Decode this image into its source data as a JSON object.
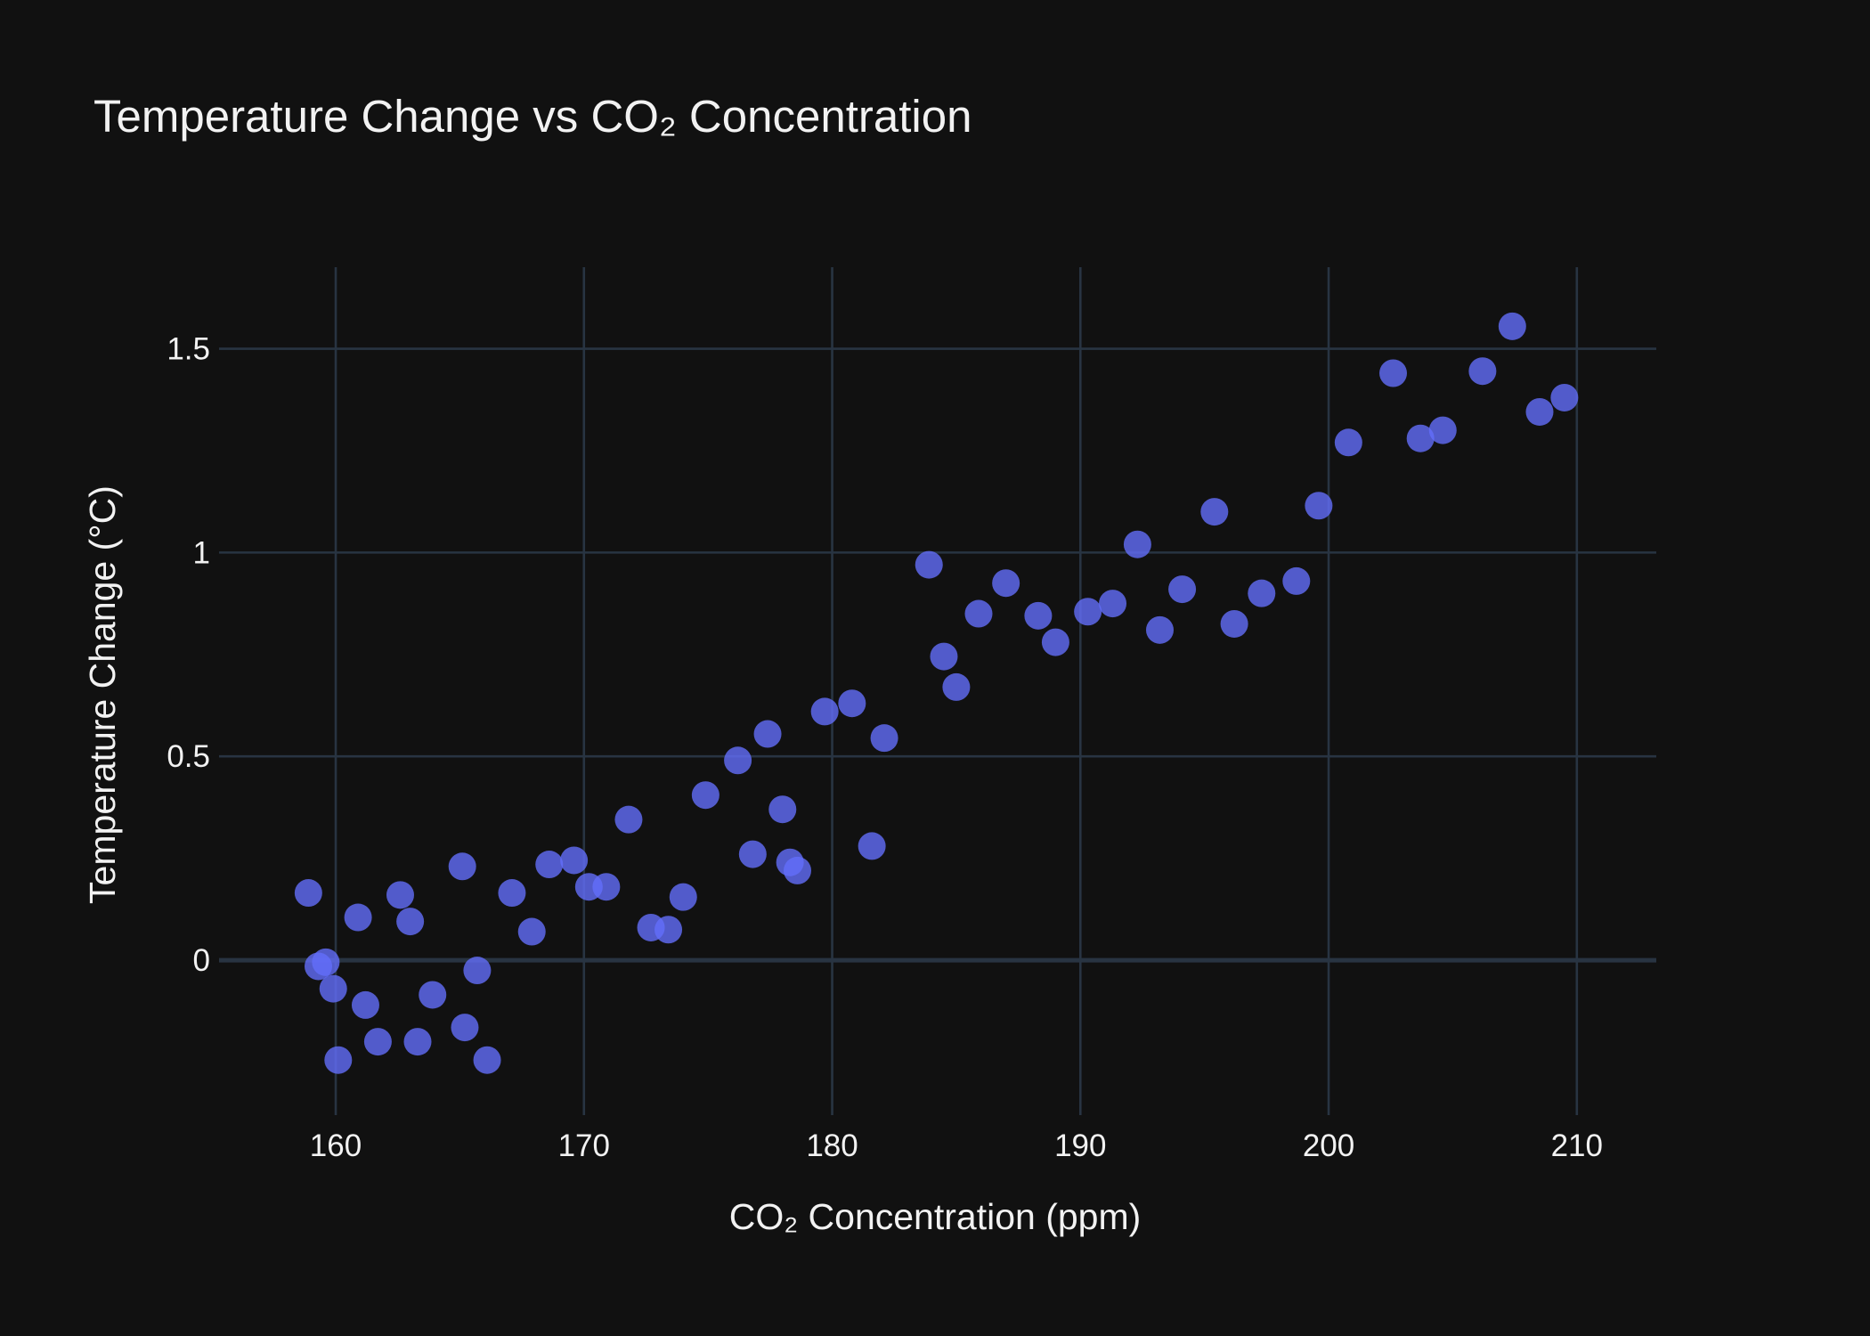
{
  "chart_data": {
    "type": "scatter",
    "title": "Temperature Change vs CO₂ Concentration",
    "xlabel": "CO₂ Concentration (ppm)",
    "ylabel": "Temperature Change (°C)",
    "xlim": [
      155.3,
      213.2
    ],
    "ylim": [
      -0.38,
      1.7
    ],
    "x_ticks": [
      160,
      170,
      180,
      190,
      200,
      210
    ],
    "x_tick_labels": [
      "160",
      "170",
      "180",
      "190",
      "200",
      "210"
    ],
    "y_ticks": [
      0,
      0.5,
      1,
      1.5
    ],
    "y_tick_labels": [
      "0",
      "0.5",
      "1",
      "1.5"
    ],
    "grid": true,
    "colors": {
      "background": "#111111",
      "grid": "#283442",
      "text": "#f2f2f2",
      "marker": "#636efa",
      "marker_opacity": 0.8
    },
    "series": [
      {
        "x": [
          158.9,
          159.3,
          159.6,
          159.9,
          160.1,
          160.9,
          161.2,
          161.7,
          162.6,
          163.0,
          163.3,
          163.9,
          165.1,
          165.2,
          165.7,
          166.1,
          167.1,
          167.9,
          168.6,
          169.6,
          170.2,
          170.9,
          171.8,
          172.7,
          173.4,
          174.0,
          174.9,
          176.2,
          176.8,
          177.4,
          178.0,
          178.3,
          178.6,
          179.7,
          180.8,
          181.6,
          182.1,
          183.9,
          184.5,
          185.0,
          185.9,
          187.0,
          188.3,
          189.0,
          190.3,
          191.3,
          192.3,
          193.2,
          194.1,
          195.4,
          196.2,
          197.3,
          198.7,
          199.6,
          200.8,
          202.6,
          203.7,
          204.6,
          206.2,
          207.4,
          208.5,
          209.5
        ],
        "y": [
          0.165,
          -0.015,
          -0.005,
          -0.07,
          -0.245,
          0.105,
          -0.11,
          -0.2,
          0.16,
          0.095,
          -0.2,
          -0.085,
          0.23,
          -0.165,
          -0.025,
          -0.245,
          0.165,
          0.07,
          0.235,
          0.245,
          0.18,
          0.18,
          0.345,
          0.08,
          0.075,
          0.155,
          0.405,
          0.49,
          0.26,
          0.555,
          0.37,
          0.24,
          0.22,
          0.61,
          0.63,
          0.28,
          0.545,
          0.97,
          0.745,
          0.67,
          0.85,
          0.925,
          0.845,
          0.78,
          0.855,
          0.875,
          1.02,
          0.81,
          0.91,
          1.1,
          0.825,
          0.9,
          0.93,
          1.115,
          1.27,
          1.44,
          1.28,
          1.3,
          1.445,
          1.555,
          1.345,
          1.38
        ]
      }
    ]
  }
}
